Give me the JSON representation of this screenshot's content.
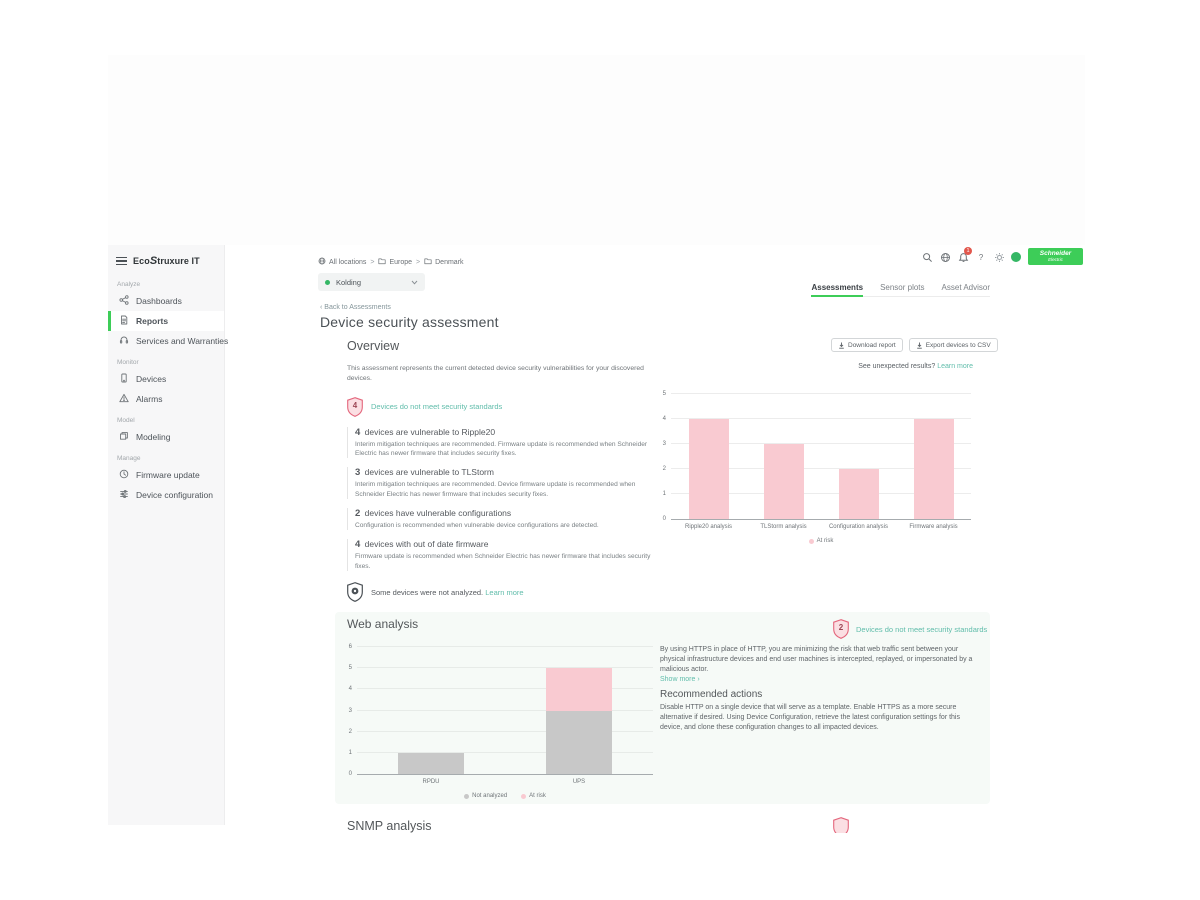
{
  "logo": {
    "pre": "Eco",
    "mid": "S",
    "post": "truxure IT"
  },
  "topbar": {
    "bell_badge": "1",
    "help_glyph": "?"
  },
  "brand": {
    "line1": "Schneider",
    "line2": "Electric"
  },
  "sidebar": {
    "sections": [
      {
        "label": "Analyze",
        "items": [
          {
            "label": "Dashboards",
            "icon": "dashboards-icon",
            "active": false
          },
          {
            "label": "Reports",
            "icon": "reports-icon",
            "active": true
          },
          {
            "label": "Services and Warranties",
            "icon": "services-icon",
            "active": false
          }
        ]
      },
      {
        "label": "Monitor",
        "items": [
          {
            "label": "Devices",
            "icon": "devices-icon",
            "active": false
          },
          {
            "label": "Alarms",
            "icon": "alarms-icon",
            "active": false
          }
        ]
      },
      {
        "label": "Model",
        "items": [
          {
            "label": "Modeling",
            "icon": "modeling-icon",
            "active": false
          }
        ]
      },
      {
        "label": "Manage",
        "items": [
          {
            "label": "Firmware update",
            "icon": "firmware-icon",
            "active": false
          },
          {
            "label": "Device configuration",
            "icon": "configuration-icon",
            "active": false
          }
        ]
      }
    ]
  },
  "breadcrumb": {
    "separator": ">",
    "items": [
      {
        "label": "All locations",
        "icon": "globe-icon"
      },
      {
        "label": "Europe",
        "icon": "folder-icon"
      },
      {
        "label": "Denmark",
        "icon": "folder-icon"
      }
    ]
  },
  "location_selector": {
    "value": "Kolding"
  },
  "tabs": [
    {
      "label": "Assessments",
      "active": true
    },
    {
      "label": "Sensor plots",
      "active": false
    },
    {
      "label": "Asset Advisor",
      "active": false
    }
  ],
  "page": {
    "back_chevron": "‹",
    "back_link": "Back to Assessments",
    "title": "Device security assessment"
  },
  "overview": {
    "heading": "Overview",
    "description": "This assessment represents the current detected device security vulnerabilities for your discovered devices.",
    "buttons": {
      "download": "Download report",
      "export": "Export devices to CSV"
    },
    "unexpected": {
      "text": "See unexpected results?",
      "link": "Learn more"
    },
    "risk_badge": {
      "count": "4",
      "label": "Devices do not meet security standards"
    },
    "findings": [
      {
        "count": "4",
        "title": "devices are vulnerable to Ripple20",
        "description": "Interim mitigation techniques are recommended. Firmware update is recommended when Schneider Electric has newer firmware that includes security fixes."
      },
      {
        "count": "3",
        "title": "devices are vulnerable to TLStorm",
        "description": "Interim mitigation techniques are recommended. Device firmware update is recommended when Schneider Electric has newer firmware that includes security fixes."
      },
      {
        "count": "2",
        "title": "devices have vulnerable configurations",
        "description": "Configuration is recommended when vulnerable device configurations are detected."
      },
      {
        "count": "4",
        "title": "devices with out of date firmware",
        "description": "Firmware update is recommended when Schneider Electric has newer firmware that includes security fixes."
      }
    ],
    "not_analyzed": {
      "text": "Some devices were not analyzed.",
      "link": "Learn more"
    }
  },
  "web_analysis": {
    "heading": "Web analysis",
    "risk_badge": {
      "count": "2",
      "label": "Devices do not meet security standards"
    },
    "description": "By using HTTPS in place of HTTP, you are minimizing the risk that web traffic sent between your physical infrastructure devices and end user machines is intercepted, replayed, or impersonated by a malicious actor.",
    "show_more": "Show more ›",
    "recommended_heading": "Recommended actions",
    "recommended_text": "Disable HTTP on a single device that will serve as a template. Enable HTTPS as a more secure alternative if desired. Using Device Configuration, retrieve the latest configuration settings for this device, and clone these configuration changes to all impacted devices."
  },
  "snmp": {
    "heading": "SNMP analysis"
  },
  "colors": {
    "accent_green": "#3dcd58",
    "teal_link": "#61bdab",
    "risk_pink": "#f9cad1",
    "risk_border": "#e4677d",
    "not_analyzed_gray": "#c8c8c8",
    "badge_red": "#e2574c"
  },
  "chart_data": [
    {
      "type": "bar",
      "title": "Overview security analysis",
      "categories": [
        "Ripple20 analysis",
        "TLStorm analysis",
        "Configuration analysis",
        "Firmware analysis"
      ],
      "series": [
        {
          "name": "At risk",
          "color": "#f9cad1",
          "values": [
            4,
            3,
            2,
            4
          ]
        }
      ],
      "stacked": false,
      "xlabel": "",
      "ylabel": "",
      "ylim": [
        0,
        5
      ],
      "yticks": [
        0,
        1,
        2,
        3,
        4,
        5
      ],
      "grid": true,
      "legend": [
        "At risk"
      ],
      "legend_position": "bottom"
    },
    {
      "type": "bar",
      "title": "Web analysis",
      "categories": [
        "RPDU",
        "UPS"
      ],
      "series": [
        {
          "name": "Not analyzed",
          "color": "#c8c8c8",
          "values": [
            1,
            3
          ]
        },
        {
          "name": "At risk",
          "color": "#f9cad1",
          "values": [
            0,
            2
          ]
        }
      ],
      "stacked": true,
      "xlabel": "",
      "ylabel": "",
      "ylim": [
        0,
        6
      ],
      "yticks": [
        0,
        1,
        2,
        3,
        4,
        5,
        6
      ],
      "grid": true,
      "legend": [
        "Not analyzed",
        "At risk"
      ],
      "legend_position": "bottom"
    }
  ]
}
